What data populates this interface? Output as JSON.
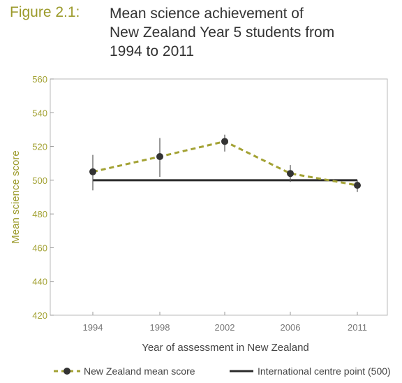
{
  "figure": {
    "label": "Figure 2.1:",
    "title_lines": [
      "Mean science achievement of",
      "New Zealand Year 5 students from",
      "1994 to 2011"
    ]
  },
  "colors": {
    "nz_series": "#a3a234",
    "reference": "#2b2b2b",
    "marker": "#333333",
    "label_green": "#9b9a2a"
  },
  "chart_data": {
    "type": "line",
    "title": "Mean science achievement of New Zealand Year 5 students from 1994 to 2011",
    "xlabel": "Year of assessment in New Zealand",
    "ylabel": "Mean science score",
    "categories": [
      "1994",
      "1998",
      "2002",
      "2006",
      "2011"
    ],
    "ylim": [
      420,
      560
    ],
    "yticks": [
      420,
      440,
      460,
      480,
      500,
      520,
      540,
      560
    ],
    "grid": false,
    "legend_position": "bottom",
    "series": [
      {
        "name": "New Zealand mean score",
        "style": "dashed-with-markers",
        "values": [
          505,
          514,
          523,
          504,
          497
        ],
        "error_low": [
          494,
          502,
          517,
          499,
          493
        ],
        "error_high": [
          515,
          525,
          527,
          509,
          500
        ]
      },
      {
        "name": "International centre point (500)",
        "style": "solid",
        "values": [
          500,
          500,
          500,
          500,
          500
        ]
      }
    ]
  }
}
